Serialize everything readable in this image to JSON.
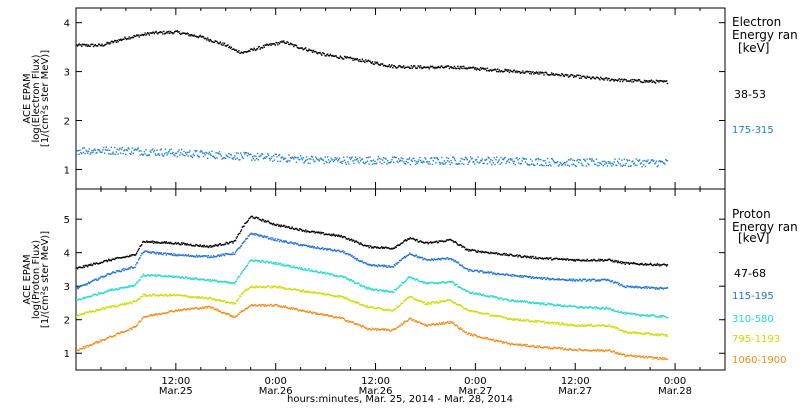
{
  "footer": "hours:minutes, Mar. 25, 2014 - Mar. 28, 2014",
  "x_ticks": [
    {
      "hour": 12,
      "time": "12:00",
      "date": "Mar.25"
    },
    {
      "hour": 24,
      "time": "0:00",
      "date": "Mar.26"
    },
    {
      "hour": 36,
      "time": "12:00",
      "date": "Mar.26"
    },
    {
      "hour": 48,
      "time": "0:00",
      "date": "Mar.27"
    },
    {
      "hour": 60,
      "time": "12:00",
      "date": "Mar.27"
    },
    {
      "hour": 72,
      "time": "0:00",
      "date": "Mar.28"
    }
  ],
  "panels": {
    "electron": {
      "ylabel_lines": [
        "ACE EPAM",
        "log(Electron Flux)",
        "[1/(cm²s ster MeV)]"
      ],
      "legend_title": "Electron\nEnergy ran",
      "legend_unit": "[keV]",
      "entries": [
        {
          "label": "38-53",
          "color": "#000000"
        },
        {
          "label": "175-315",
          "color": "#1f7fd0"
        }
      ]
    },
    "proton": {
      "ylabel_lines": [
        "ACE EPAM",
        "log(Proton Flux)",
        "[1/(cm²s ster MeV)]"
      ],
      "legend_title": "Proton\nEnergy ran",
      "legend_unit": "[keV]",
      "entries": [
        {
          "label": "47-68",
          "color": "#000000"
        },
        {
          "label": "115-195",
          "color": "#1f6fd6"
        },
        {
          "label": "310-580",
          "color": "#22d8c8"
        },
        {
          "label": "795-1193",
          "color": "#c8dc00"
        },
        {
          "label": "1060-1900",
          "color": "#f08a18"
        }
      ]
    }
  },
  "chart_data": [
    {
      "type": "scatter",
      "xlabel": "hours:minutes, Mar. 25, 2014 - Mar. 28, 2014",
      "ylabel": "ACE EPAM log(Electron Flux) [1/(cm²s ster MeV)]",
      "xlim": [
        0,
        78
      ],
      "ylim": [
        0.6,
        4.3
      ],
      "yticks": [
        1,
        2,
        3,
        4
      ],
      "series": [
        {
          "name": "38-53",
          "color": "#000000",
          "points": [
            [
              0,
              3.55
            ],
            [
              3,
              3.55
            ],
            [
              6,
              3.7
            ],
            [
              9,
              3.8
            ],
            [
              12,
              3.82
            ],
            [
              15,
              3.72
            ],
            [
              18,
              3.55
            ],
            [
              19,
              3.45
            ],
            [
              20,
              3.4
            ],
            [
              23,
              3.55
            ],
            [
              25,
              3.62
            ],
            [
              26,
              3.55
            ],
            [
              30,
              3.35
            ],
            [
              34,
              3.25
            ],
            [
              38,
              3.12
            ],
            [
              42,
              3.1
            ],
            [
              46,
              3.1
            ],
            [
              50,
              3.05
            ],
            [
              54,
              3.0
            ],
            [
              58,
              2.95
            ],
            [
              62,
              2.88
            ],
            [
              66,
              2.83
            ],
            [
              71,
              2.8
            ]
          ]
        },
        {
          "name": "175-315",
          "color": "#1f7fd0",
          "points": [
            [
              0,
              1.4
            ],
            [
              6,
              1.4
            ],
            [
              12,
              1.35
            ],
            [
              18,
              1.3
            ],
            [
              24,
              1.25
            ],
            [
              30,
              1.2
            ],
            [
              36,
              1.2
            ],
            [
              42,
              1.18
            ],
            [
              48,
              1.2
            ],
            [
              54,
              1.18
            ],
            [
              60,
              1.15
            ],
            [
              66,
              1.15
            ],
            [
              71,
              1.15
            ]
          ]
        }
      ]
    },
    {
      "type": "scatter",
      "xlabel": "hours:minutes, Mar. 25, 2014 - Mar. 28, 2014",
      "ylabel": "ACE EPAM log(Proton Flux) [1/(cm²s ster MeV)]",
      "xlim": [
        0,
        78
      ],
      "ylim": [
        0.5,
        5.9
      ],
      "yticks": [
        1,
        2,
        3,
        4,
        5
      ],
      "series": [
        {
          "name": "47-68",
          "color": "#000000",
          "points": [
            [
              0,
              3.55
            ],
            [
              4,
              3.8
            ],
            [
              7,
              3.95
            ],
            [
              8,
              4.35
            ],
            [
              12,
              4.3
            ],
            [
              16,
              4.2
            ],
            [
              19,
              4.35
            ],
            [
              20,
              4.8
            ],
            [
              21,
              5.1
            ],
            [
              24,
              4.85
            ],
            [
              28,
              4.65
            ],
            [
              32,
              4.5
            ],
            [
              35,
              4.2
            ],
            [
              38,
              4.15
            ],
            [
              40,
              4.45
            ],
            [
              42,
              4.3
            ],
            [
              45,
              4.4
            ],
            [
              47,
              4.1
            ],
            [
              52,
              3.95
            ],
            [
              56,
              3.85
            ],
            [
              60,
              3.8
            ],
            [
              64,
              3.8
            ],
            [
              66,
              3.7
            ],
            [
              71,
              3.65
            ]
          ]
        },
        {
          "name": "115-195",
          "color": "#1f6fd6",
          "points": [
            [
              0,
              2.95
            ],
            [
              4,
              3.4
            ],
            [
              7,
              3.6
            ],
            [
              8,
              4.05
            ],
            [
              12,
              3.95
            ],
            [
              16,
              3.9
            ],
            [
              19,
              4.0
            ],
            [
              20,
              4.3
            ],
            [
              21,
              4.6
            ],
            [
              24,
              4.4
            ],
            [
              28,
              4.2
            ],
            [
              32,
              4.05
            ],
            [
              35,
              3.65
            ],
            [
              38,
              3.6
            ],
            [
              40,
              4.0
            ],
            [
              42,
              3.8
            ],
            [
              45,
              3.85
            ],
            [
              47,
              3.5
            ],
            [
              52,
              3.35
            ],
            [
              56,
              3.25
            ],
            [
              60,
              3.2
            ],
            [
              64,
              3.2
            ],
            [
              66,
              3.0
            ],
            [
              71,
              2.95
            ]
          ]
        },
        {
          "name": "310-580",
          "color": "#22d8c8",
          "points": [
            [
              0,
              2.6
            ],
            [
              4,
              2.9
            ],
            [
              7,
              3.05
            ],
            [
              8,
              3.35
            ],
            [
              12,
              3.3
            ],
            [
              16,
              3.2
            ],
            [
              19,
              3.1
            ],
            [
              20,
              3.5
            ],
            [
              21,
              3.8
            ],
            [
              24,
              3.7
            ],
            [
              28,
              3.5
            ],
            [
              32,
              3.3
            ],
            [
              35,
              2.95
            ],
            [
              38,
              2.85
            ],
            [
              40,
              3.3
            ],
            [
              42,
              3.1
            ],
            [
              45,
              3.15
            ],
            [
              47,
              2.85
            ],
            [
              52,
              2.6
            ],
            [
              56,
              2.5
            ],
            [
              60,
              2.4
            ],
            [
              64,
              2.35
            ],
            [
              66,
              2.2
            ],
            [
              71,
              2.1
            ]
          ]
        },
        {
          "name": "795-1193",
          "color": "#c8dc00",
          "points": [
            [
              0,
              2.15
            ],
            [
              4,
              2.4
            ],
            [
              7,
              2.55
            ],
            [
              8,
              2.75
            ],
            [
              12,
              2.75
            ],
            [
              16,
              2.65
            ],
            [
              19,
              2.5
            ],
            [
              20,
              2.85
            ],
            [
              21,
              3.0
            ],
            [
              24,
              3.0
            ],
            [
              28,
              2.85
            ],
            [
              32,
              2.7
            ],
            [
              35,
              2.4
            ],
            [
              38,
              2.3
            ],
            [
              40,
              2.7
            ],
            [
              42,
              2.5
            ],
            [
              45,
              2.6
            ],
            [
              47,
              2.3
            ],
            [
              52,
              2.05
            ],
            [
              56,
              1.95
            ],
            [
              60,
              1.85
            ],
            [
              64,
              1.85
            ],
            [
              66,
              1.65
            ],
            [
              71,
              1.55
            ]
          ]
        },
        {
          "name": "1060-1900",
          "color": "#f08a18",
          "points": [
            [
              0,
              1.1
            ],
            [
              4,
              1.5
            ],
            [
              7,
              1.8
            ],
            [
              8,
              2.1
            ],
            [
              12,
              2.3
            ],
            [
              16,
              2.4
            ],
            [
              19,
              2.1
            ],
            [
              20,
              2.3
            ],
            [
              21,
              2.45
            ],
            [
              24,
              2.45
            ],
            [
              28,
              2.25
            ],
            [
              32,
              2.05
            ],
            [
              35,
              1.75
            ],
            [
              38,
              1.7
            ],
            [
              40,
              2.05
            ],
            [
              42,
              1.85
            ],
            [
              45,
              1.95
            ],
            [
              47,
              1.6
            ],
            [
              52,
              1.3
            ],
            [
              56,
              1.2
            ],
            [
              60,
              1.12
            ],
            [
              64,
              1.1
            ],
            [
              66,
              0.95
            ],
            [
              71,
              0.85
            ]
          ]
        }
      ]
    }
  ]
}
